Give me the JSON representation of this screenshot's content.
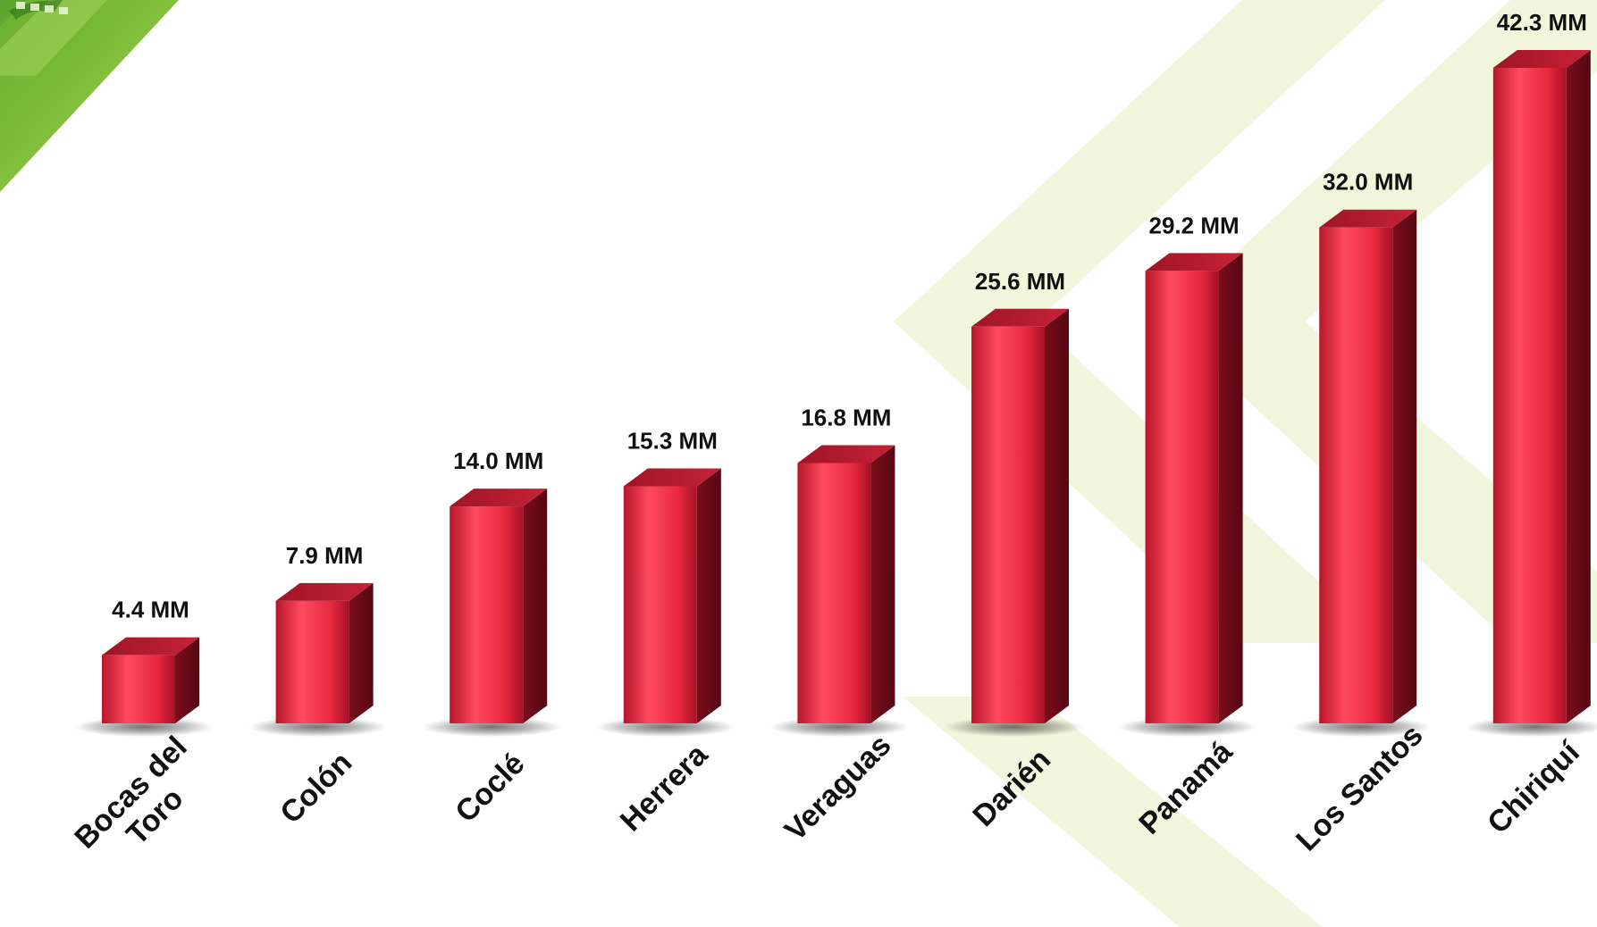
{
  "chart_data": {
    "type": "bar",
    "categories": [
      "Bocas del Toro",
      "Colón",
      "Coclé",
      "Herrera",
      "Veraguas",
      "Darién",
      "Panamá",
      "Los Santos",
      "Chiriquí"
    ],
    "category_lines": [
      [
        "Bocas del",
        "Toro"
      ],
      [
        "Colón"
      ],
      [
        "Coclé"
      ],
      [
        "Herrera"
      ],
      [
        "Veraguas"
      ],
      [
        "Darién"
      ],
      [
        "Panamá"
      ],
      [
        "Los Santos"
      ],
      [
        "Chiriquí"
      ]
    ],
    "values": [
      4.4,
      7.9,
      14.0,
      15.3,
      16.8,
      25.6,
      29.2,
      32.0,
      42.3
    ],
    "data_labels": [
      "4.4 MM",
      "7.9 MM",
      "14.0 MM",
      "15.3 MM",
      "16.8 MM",
      "25.6 MM",
      "29.2 MM",
      "32.0 MM",
      "42.3 MM"
    ],
    "value_unit": "MM",
    "ylim": [
      0,
      42.3
    ],
    "grid": false,
    "legend": "none",
    "style": "3d-cylinder-bar",
    "colors": {
      "bar_front": "#e8283f",
      "bar_highlight": "#ff4a5e",
      "bar_side": "#6e0b18",
      "bar_top": "#b3192c",
      "text": "#111111",
      "decor_green": "#8dc63f",
      "decor_light_green": "#eef4d6"
    }
  }
}
